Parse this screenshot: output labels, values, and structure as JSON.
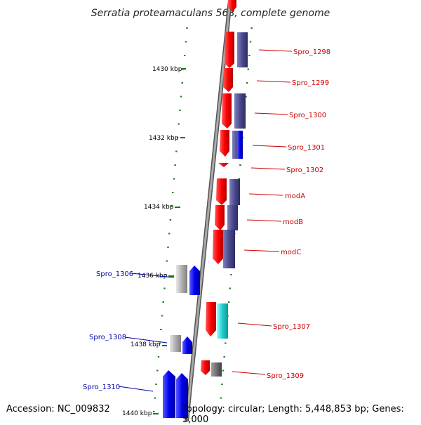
{
  "title": "Serratia proteamaculans 568, complete genome",
  "footer": {
    "accession": "Accession: NC_009832",
    "summary": "Topology: circular; Length: 5,448,853 bp; Genes: 5,000"
  },
  "scale_labels": [
    "1430 kbp",
    "1432 kbp",
    "1434 kbp",
    "1436 kbp",
    "1438 kbp",
    "1440 kbp"
  ],
  "gene_labels": [
    {
      "name": "Spro_1298",
      "strand": "forward"
    },
    {
      "name": "Spro_1299",
      "strand": "forward"
    },
    {
      "name": "Spro_1300",
      "strand": "forward"
    },
    {
      "name": "Spro_1301",
      "strand": "forward"
    },
    {
      "name": "Spro_1302",
      "strand": "forward"
    },
    {
      "name": "modA",
      "strand": "forward"
    },
    {
      "name": "modB",
      "strand": "forward"
    },
    {
      "name": "modC",
      "strand": "forward"
    },
    {
      "name": "Spro_1306",
      "strand": "reverse"
    },
    {
      "name": "Spro_1307",
      "strand": "forward"
    },
    {
      "name": "Spro_1308",
      "strand": "reverse"
    },
    {
      "name": "Spro_1309",
      "strand": "forward"
    },
    {
      "name": "Spro_1310",
      "strand": "reverse"
    }
  ],
  "colors": {
    "forward_label": "#cc0000",
    "reverse_label": "#0000aa",
    "forward_gene": "#ff0000",
    "reverse_gene": "#0000ee",
    "cog_purple": "#4a4a8c",
    "cog_cyan": "#22cccc",
    "gray_gene": "#b0b0b0",
    "dark_gray_gene": "#707070",
    "tick": "#1a7a1a",
    "backbone": "#888888"
  }
}
